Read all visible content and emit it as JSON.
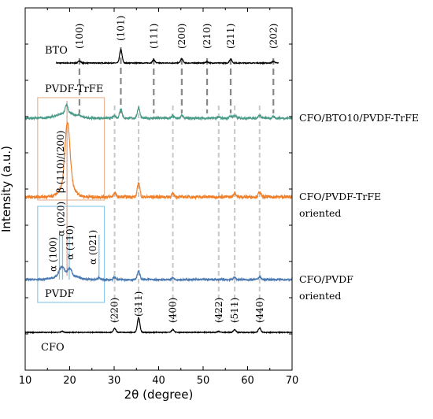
{
  "chart_data": {
    "type": "line",
    "title": "",
    "xlabel": "2θ (degree)",
    "ylabel": "Intensity (a.u.)",
    "xlim": [
      10,
      70
    ],
    "x_ticks": [
      10,
      20,
      30,
      40,
      50,
      60,
      70
    ],
    "y_ticks_labeled": false,
    "grid": false,
    "legend": "none",
    "series": [
      {
        "key": "bto",
        "name": "BTO",
        "color": "#000000",
        "x_range": [
          17,
          67
        ],
        "peaks": [
          {
            "x": 22.2,
            "h": 0.1
          },
          {
            "x": 31.5,
            "h": 0.62
          },
          {
            "x": 38.9,
            "h": 0.15
          },
          {
            "x": 45.2,
            "h": 0.2
          },
          {
            "x": 50.9,
            "h": 0.06
          },
          {
            "x": 56.2,
            "h": 0.18
          },
          {
            "x": 65.8,
            "h": 0.08
          }
        ]
      },
      {
        "key": "cfo_bto_pvdf",
        "name": "CFO/BTO10/PVDF-TrFE",
        "color": "#4a9a88",
        "x_range": [
          10,
          70
        ],
        "peaks": [
          {
            "x": 19.3,
            "h": 0.38
          },
          {
            "x": 22.2,
            "h": 0.06
          },
          {
            "x": 30.1,
            "h": 0.12
          },
          {
            "x": 31.5,
            "h": 0.45
          },
          {
            "x": 35.5,
            "h": 0.5
          },
          {
            "x": 43.2,
            "h": 0.1
          },
          {
            "x": 45.2,
            "h": 0.12
          },
          {
            "x": 53.5,
            "h": 0.05
          },
          {
            "x": 56.2,
            "h": 0.1
          },
          {
            "x": 57.1,
            "h": 0.12
          },
          {
            "x": 62.7,
            "h": 0.14
          },
          {
            "x": 65.8,
            "h": 0.05
          }
        ]
      },
      {
        "key": "cfo_pvdf_trfe",
        "name": "CFO/PVDF-TrFE",
        "label_line2": "oriented",
        "color": "#f07f2a",
        "x_range": [
          10,
          70
        ],
        "peaks": [
          {
            "x": 19.5,
            "h": 1.9
          },
          {
            "x": 30.1,
            "h": 0.13
          },
          {
            "x": 35.5,
            "h": 0.45
          },
          {
            "x": 43.2,
            "h": 0.1
          },
          {
            "x": 57.1,
            "h": 0.13
          },
          {
            "x": 62.7,
            "h": 0.15
          }
        ]
      },
      {
        "key": "cfo_pvdf",
        "name": "CFO/PVDF",
        "label_line2": "oriented",
        "color": "#4a78b0",
        "x_range": [
          10,
          70
        ],
        "peaks": [
          {
            "x": 17.9,
            "h": 0.25
          },
          {
            "x": 18.5,
            "h": 0.28
          },
          {
            "x": 20.0,
            "h": 0.35
          },
          {
            "x": 26.6,
            "h": 0.1
          },
          {
            "x": 30.1,
            "h": 0.13
          },
          {
            "x": 35.5,
            "h": 0.45
          },
          {
            "x": 43.2,
            "h": 0.1
          },
          {
            "x": 57.1,
            "h": 0.12
          },
          {
            "x": 62.7,
            "h": 0.14
          }
        ]
      },
      {
        "key": "cfo",
        "name": "CFO",
        "color": "#000000",
        "x_range": [
          10,
          70
        ],
        "peaks": [
          {
            "x": 18.3,
            "h": 0.05
          },
          {
            "x": 30.1,
            "h": 0.2
          },
          {
            "x": 35.5,
            "h": 0.75
          },
          {
            "x": 43.2,
            "h": 0.14
          },
          {
            "x": 53.5,
            "h": 0.05
          },
          {
            "x": 57.1,
            "h": 0.14
          },
          {
            "x": 62.7,
            "h": 0.22
          }
        ]
      }
    ],
    "bto_reflections": [
      {
        "label": "(100)",
        "x": 22.2
      },
      {
        "label": "(101)",
        "x": 31.5
      },
      {
        "label": "(111)",
        "x": 38.9
      },
      {
        "label": "(200)",
        "x": 45.2
      },
      {
        "label": "(210)",
        "x": 50.9
      },
      {
        "label": "(211)",
        "x": 56.2
      },
      {
        "label": "(202)",
        "x": 65.8
      }
    ],
    "cfo_reflections": [
      {
        "label": "(220)",
        "x": 30.1
      },
      {
        "label": "(311)",
        "x": 35.5
      },
      {
        "label": "(400)",
        "x": 43.2
      },
      {
        "label": "(422)",
        "x": 53.5
      },
      {
        "label": "(511)",
        "x": 57.1
      },
      {
        "label": "(440)",
        "x": 62.7
      }
    ],
    "pvdf_trfe_annotation": {
      "text": "β (110)/(200)",
      "x": 19.4,
      "box_label": "PVDF-TrFE",
      "box_color": "#e8b89a",
      "x_range": [
        12.8,
        27.8
      ]
    },
    "pvdf_annotation": {
      "box_label": "PVDF",
      "box_color": "#8ccbe8",
      "x_range": [
        12.8,
        27.8
      ],
      "reflections": [
        {
          "label": "α (100)",
          "x": 17.7
        },
        {
          "label": "α (020)",
          "x": 18.4
        },
        {
          "label": "α (110)",
          "x": 19.9
        },
        {
          "label": "α (021)",
          "x": 26.6
        }
      ]
    },
    "reference_line_color": "#777777",
    "bto_reference_line_color": "#888888",
    "cfo_reference_line_color": "#c8c8c8",
    "beta_line_color": "#d9a48a",
    "alpha_line_color": "#7ec2e6"
  }
}
